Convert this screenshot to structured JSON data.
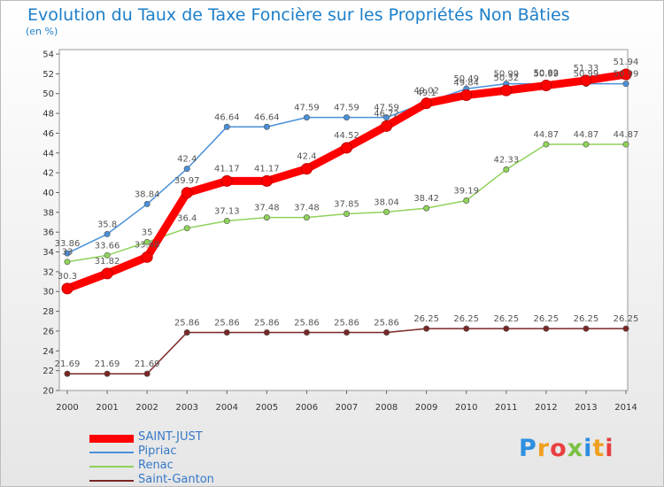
{
  "chart_data": {
    "type": "line",
    "title": "Evolution du Taux de Taxe Foncière sur les Propriétés Non Bâties",
    "unit_label": "(en %)",
    "categories": [
      "2000",
      "2001",
      "2002",
      "2003",
      "2004",
      "2005",
      "2006",
      "2007",
      "2008",
      "2009",
      "2010",
      "2011",
      "2012",
      "2013",
      "2014"
    ],
    "ylim": [
      20,
      54
    ],
    "yticks": [
      20,
      22,
      24,
      26,
      28,
      30,
      32,
      34,
      36,
      38,
      40,
      42,
      44,
      46,
      48,
      50,
      52,
      54
    ],
    "grid": false,
    "legend_position": "bottom-left",
    "series": [
      {
        "name": "SAINT-JUST",
        "color": "#ff0000",
        "values": [
          30.3,
          31.82,
          33.48,
          39.97,
          41.17,
          41.17,
          42.4,
          44.52,
          46.72,
          49.02,
          49.84,
          50.32,
          50.82,
          51.33,
          51.94
        ],
        "labels": [
          "30.3",
          "31.82",
          "33.48",
          "39.97",
          "41.17",
          "41.17",
          "42.4",
          "44.52",
          "46.72",
          "49.02",
          "49.84",
          "50.32",
          "50.82",
          "51.33",
          "51.94"
        ]
      },
      {
        "name": "Pipriac",
        "color": "#4a90d9",
        "values": [
          33.86,
          35.8,
          38.84,
          42.4,
          46.64,
          46.64,
          47.59,
          47.59,
          47.59,
          49.1,
          50.49,
          50.99,
          50.99,
          50.99,
          50.99
        ],
        "labels": [
          "33.86",
          "35.8",
          "38.84",
          "42.4",
          "46.64",
          "46.64",
          "47.59",
          "47.59",
          "47.59",
          "49.1",
          "50.49",
          "50.99",
          "50.99",
          "50.99",
          "50.99"
        ]
      },
      {
        "name": "Renac",
        "color": "#8fd25a",
        "values": [
          33,
          33.66,
          35,
          36.4,
          37.13,
          37.48,
          37.48,
          37.85,
          38.04,
          38.42,
          39.19,
          42.33,
          44.87,
          44.87,
          44.87
        ],
        "labels": [
          "33",
          "33.66",
          "35",
          "36.4",
          "37.13",
          "37.48",
          "37.48",
          "37.85",
          "38.04",
          "38.42",
          "39.19",
          "42.33",
          "44.87",
          "44.87",
          "44.87"
        ]
      },
      {
        "name": "Saint-Ganton",
        "color": "#7a2626",
        "values": [
          21.69,
          21.69,
          21.69,
          25.86,
          25.86,
          25.86,
          25.86,
          25.86,
          25.86,
          26.25,
          26.25,
          26.25,
          26.25,
          26.25,
          26.25
        ],
        "labels": [
          "21.69",
          "21.69",
          "21.69",
          "25.86",
          "25.86",
          "25.86",
          "25.86",
          "25.86",
          "25.86",
          "26.25",
          "26.25",
          "26.25",
          "26.25",
          "26.25",
          "26.25"
        ]
      }
    ]
  },
  "logo_text": "Proxiti",
  "logo_colors": [
    "#2d8fe0",
    "#f0a020",
    "#e84040",
    "#7ac143",
    "#2d8fe0",
    "#f0a020",
    "#e84040"
  ]
}
